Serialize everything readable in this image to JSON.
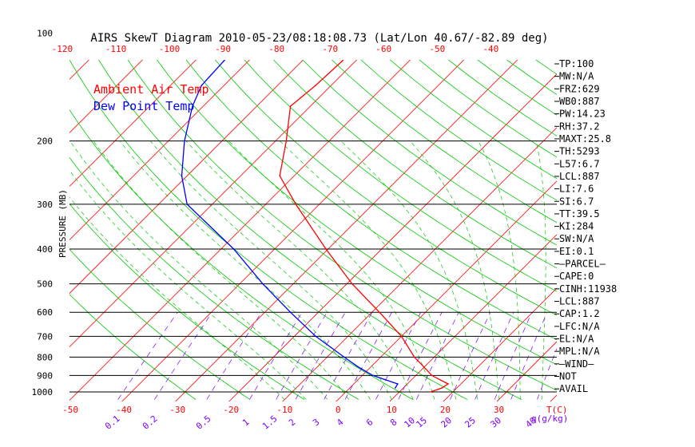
{
  "chart_data": {
    "type": "line",
    "title": "AIRS SkewT Diagram 2010-05-23/08:18:08.73 (Lat/Lon 40.67/-82.89 deg)",
    "ylabel": "PRESSURE (MB)",
    "xlabel": "T(C)",
    "mixing_ratio_unit": "q(g/kg)",
    "y_log_scale": true,
    "ylim": [
      100,
      1050
    ],
    "y_ticks": [
      100,
      200,
      300,
      400,
      500,
      600,
      700,
      800,
      900,
      1000
    ],
    "y_tick_labels": [
      "100",
      "200",
      "300",
      "400",
      "500",
      "600",
      "700",
      "800",
      "900",
      "1000"
    ],
    "top_ticks": [
      -120,
      -110,
      -100,
      -90,
      -80,
      -70,
      -60,
      -50,
      -40
    ],
    "top_tick_labels": [
      "-120",
      "-110",
      "-100",
      "-90",
      "-80",
      "-70",
      "-60",
      "-50",
      "-40"
    ],
    "bottom_ticks": [
      -50,
      -40,
      -30,
      -20,
      -10,
      0,
      10,
      20,
      30
    ],
    "bottom_tick_labels": [
      "-50",
      "-40",
      "-30",
      "-20",
      "-10",
      "0",
      "10",
      "20",
      "30"
    ],
    "mixing_ratio_labels": [
      "0.1",
      "0.2",
      "0.5",
      "1",
      "1.5",
      "2",
      "3",
      "4",
      "6",
      "8",
      "10",
      "15",
      "20",
      "25",
      "30",
      "40"
    ],
    "legend": [
      {
        "label": "Ambient Air Temp",
        "color": "#ff0000"
      },
      {
        "label": "Dew Point Temp",
        "color": "#0000ff"
      }
    ],
    "legend_position": "top-left",
    "colors": {
      "isotherm": "#ff0000",
      "dry_adiabat": "#00c800",
      "moist_adiabat": "#00c800",
      "mixing_ratio": "#7b00ff",
      "isobar": "#000000",
      "title": "#000000",
      "axis_ticks": "#ff0000"
    },
    "series": [
      {
        "name": "Ambient Air Temp",
        "color": "#ff0000",
        "points": [
          {
            "p": 1000,
            "t": 15.8
          },
          {
            "p": 975,
            "t": 17.2
          },
          {
            "p": 950,
            "t": 17.6
          },
          {
            "p": 900,
            "t": 13.0
          },
          {
            "p": 850,
            "t": 9.8
          },
          {
            "p": 800,
            "t": 6.3
          },
          {
            "p": 700,
            "t": 0.0
          },
          {
            "p": 600,
            "t": -8.6
          },
          {
            "p": 500,
            "t": -19.0
          },
          {
            "p": 400,
            "t": -30.4
          },
          {
            "p": 300,
            "t": -44.4
          },
          {
            "p": 250,
            "t": -52.7
          },
          {
            "p": 200,
            "t": -58.0
          },
          {
            "p": 160,
            "t": -63.7
          },
          {
            "p": 140,
            "t": -62.9
          },
          {
            "p": 120,
            "t": -62.5
          },
          {
            "p": 100,
            "t": -62.6
          }
        ]
      },
      {
        "name": "Dew Point Temp",
        "color": "#0000ff",
        "points": [
          {
            "p": 975,
            "t": 8.5
          },
          {
            "p": 950,
            "t": 8.2
          },
          {
            "p": 900,
            "t": 2.0
          },
          {
            "p": 850,
            "t": -2.5
          },
          {
            "p": 800,
            "t": -6.8
          },
          {
            "p": 700,
            "t": -16.0
          },
          {
            "p": 600,
            "t": -25.2
          },
          {
            "p": 500,
            "t": -35.7
          },
          {
            "p": 400,
            "t": -47.6
          },
          {
            "p": 300,
            "t": -64.7
          },
          {
            "p": 250,
            "t": -71.0
          },
          {
            "p": 200,
            "t": -77.0
          },
          {
            "p": 160,
            "t": -82.0
          },
          {
            "p": 140,
            "t": -84.2
          },
          {
            "p": 120,
            "t": -84.6
          },
          {
            "p": 100,
            "t": -85.3
          }
        ]
      }
    ]
  },
  "stability_indices": [
    "TP:100",
    "MW:N/A",
    "FRZ:629",
    "WB0:887",
    "PW:14.23",
    "RH:37.2",
    "MAXT:25.8",
    "TH:5293",
    "L57:6.7",
    "LCL:887",
    "LI:7.6",
    "SI:6.7",
    "TT:39.5",
    "KI:284",
    "SW:N/A",
    "EI:0.1",
    "–PARCEL–",
    "CAPE:0",
    "CINH:11938",
    "LCL:887",
    "CAP:1.2",
    "LFC:N/A",
    "EL:N/A",
    "MPL:N/A",
    "–WIND–",
    "NOT",
    "AVAIL"
  ]
}
